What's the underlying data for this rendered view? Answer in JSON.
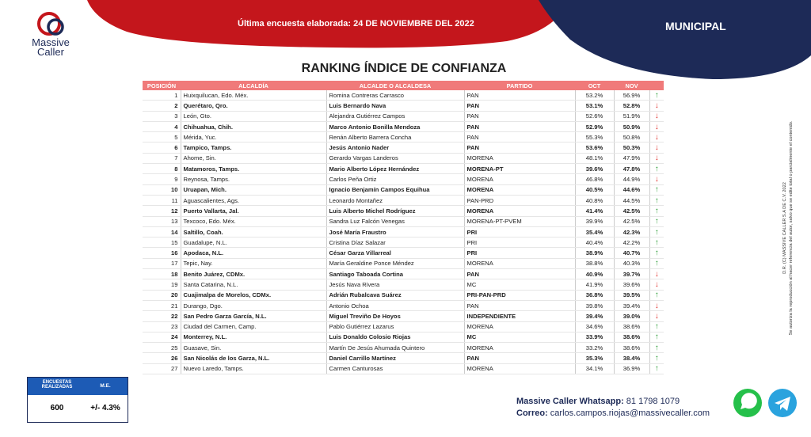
{
  "header": {
    "logo_line1": "Massive",
    "logo_line2": "Caller",
    "survey": "Última encuesta elaborada: 24 DE NOVIEMBRE DEL 2022",
    "scope": "MUNICIPAL"
  },
  "title": "RANKING ÍNDICE DE CONFIANZA",
  "table": {
    "columns": [
      "POSICIÓN",
      "ALCALDÍA",
      "ALCALDE O ALCALDESA",
      "PARTIDO",
      "OCT",
      "NOV"
    ],
    "rows": [
      [
        1,
        "Huixquilucan, Edo. Méx.",
        "Romina Contreras Carrasco",
        "PAN",
        "53.2%",
        "56.9%"
      ],
      [
        2,
        "Querétaro, Qro.",
        "Luis Bernardo Nava",
        "PAN",
        "53.1%",
        "52.8%"
      ],
      [
        3,
        "León, Gto.",
        "Alejandra Gutiérrez Campos",
        "PAN",
        "52.6%",
        "51.9%"
      ],
      [
        4,
        "Chihuahua, Chih.",
        "Marco Antonio Bonilla Mendoza",
        "PAN",
        "52.9%",
        "50.9%"
      ],
      [
        5,
        "Mérida, Yuc.",
        "Renán Alberto Barrera Concha",
        "PAN",
        "55.3%",
        "50.8%"
      ],
      [
        6,
        "Tampico, Tamps.",
        "Jesús Antonio Nader",
        "PAN",
        "53.6%",
        "50.3%"
      ],
      [
        7,
        "Ahome, Sin.",
        "Gerardo Vargas Landeros",
        "MORENA",
        "48.1%",
        "47.9%"
      ],
      [
        8,
        "Matamoros, Tamps.",
        "Mario Alberto López Hernández",
        "MORENA-PT",
        "39.6%",
        "47.8%"
      ],
      [
        9,
        "Reynosa, Tamps.",
        "Carlos Peña Ortiz",
        "MORENA",
        "46.8%",
        "44.9%"
      ],
      [
        10,
        "Uruapan, Mich.",
        "Ignacio Benjamín Campos Equihua",
        "MORENA",
        "40.5%",
        "44.6%"
      ],
      [
        11,
        "Aguascalientes, Ags.",
        "Leonardo Montañez",
        "PAN-PRD",
        "40.8%",
        "44.5%"
      ],
      [
        12,
        "Puerto Vallarta, Jal.",
        "Luis Alberto Michel Rodríguez",
        "MORENA",
        "41.4%",
        "42.5%"
      ],
      [
        13,
        "Texcoco, Edo. Méx.",
        "Sandra Luz Falcón Venegas",
        "MORENA-PT-PVEM",
        "39.9%",
        "42.5%"
      ],
      [
        14,
        "Saltillo, Coah.",
        "José María Fraustro",
        "PRI",
        "35.4%",
        "42.3%"
      ],
      [
        15,
        "Guadalupe, N.L.",
        "Cristina Díaz Salazar",
        "PRI",
        "40.4%",
        "42.2%"
      ],
      [
        16,
        "Apodaca, N.L.",
        "César Garza Villarreal",
        "PRI",
        "38.9%",
        "40.7%"
      ],
      [
        17,
        "Tepic, Nay.",
        "María Geraldine Ponce Méndez",
        "MORENA",
        "38.8%",
        "40.3%"
      ],
      [
        18,
        "Benito Juárez, CDMx.",
        "Santiago Taboada Cortina",
        "PAN",
        "40.9%",
        "39.7%"
      ],
      [
        19,
        "Santa Catarina, N.L.",
        "Jesús Nava Rivera",
        "MC",
        "41.9%",
        "39.6%"
      ],
      [
        20,
        "Cuajimalpa de Morelos, CDMx.",
        "Adrián Rubalcava Suárez",
        "PRI-PAN-PRD",
        "36.8%",
        "39.5%"
      ],
      [
        21,
        "Durango, Dgo.",
        "Antonio Ochoa",
        "PAN",
        "39.8%",
        "39.4%"
      ],
      [
        22,
        "San Pedro Garza García, N.L.",
        "Miguel Treviño De Hoyos",
        "INDEPENDIENTE",
        "39.4%",
        "39.0%"
      ],
      [
        23,
        "Ciudad del Carmen, Camp.",
        "Pablo Gutiérrez Lazarus",
        "MORENA",
        "34.6%",
        "38.6%"
      ],
      [
        24,
        "Monterrey, N.L.",
        "Luis Donaldo Colosio Riojas",
        "MC",
        "33.9%",
        "38.6%"
      ],
      [
        25,
        "Guasave, Sin.",
        "Martín De Jesús Ahumada Quintero",
        "MORENA",
        "33.2%",
        "38.6%"
      ],
      [
        26,
        "San Nicolás de los Garza, N.L.",
        "Daniel Carrillo Martínez",
        "PAN",
        "35.3%",
        "38.4%"
      ],
      [
        27,
        "Nuevo Laredo, Tamps.",
        "Carmen Canturosas",
        "MORENA",
        "34.1%",
        "36.9%"
      ]
    ],
    "trend": [
      "up",
      "down",
      "down",
      "down",
      "down",
      "down",
      "down",
      "up",
      "down",
      "up",
      "up",
      "up",
      "up",
      "up",
      "up",
      "up",
      "up",
      "down",
      "down",
      "up",
      "down",
      "down",
      "up",
      "up",
      "up",
      "up",
      "up"
    ]
  },
  "side_note": {
    "line1": "D.R. (C) MASSIVE CALLER S.A DE C.V. 2022",
    "line2": "Se autoriza la reproducción al hacer referencia del autor, salvo que se edite total o parcialmente el contenido."
  },
  "stats": {
    "label1": "ENCUESTAS REALIZADAS",
    "label2": "M.E.",
    "value1": "600",
    "value2": "+/- 4.3%"
  },
  "contact": {
    "whatsapp_label": "Massive Caller Whatsapp:",
    "whatsapp": "81 1798 1079",
    "email_label": "Correo:",
    "email": "carlos.campos.riojas@massivecaller.com"
  }
}
